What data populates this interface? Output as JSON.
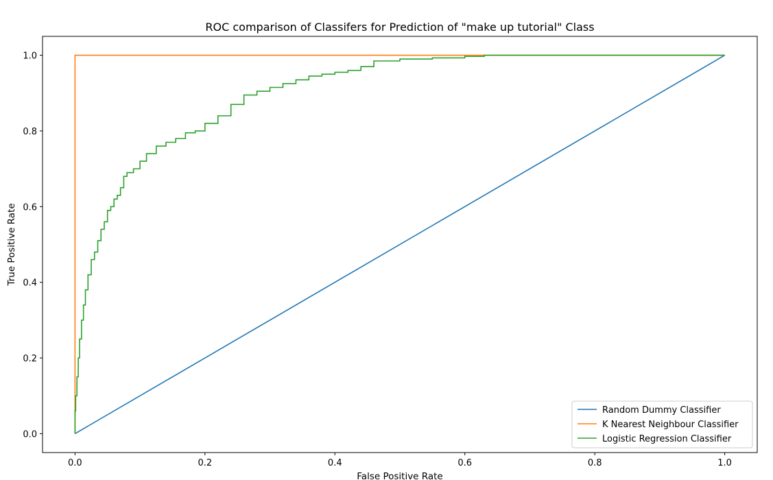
{
  "chart_data": {
    "type": "line",
    "title": "ROC comparison of Classifers for Prediction of \"make up tutorial\" Class",
    "xlabel": "False Positive Rate",
    "ylabel": "True Positive Rate",
    "xlim": [
      -0.05,
      1.05
    ],
    "ylim": [
      -0.05,
      1.05
    ],
    "xticks": [
      "0.0",
      "0.2",
      "0.4",
      "0.6",
      "0.8",
      "1.0"
    ],
    "yticks": [
      "0.0",
      "0.2",
      "0.4",
      "0.6",
      "0.8",
      "1.0"
    ],
    "grid": false,
    "legend_position": "lower-right",
    "series": [
      {
        "name": "Random Dummy Classifier",
        "color": "#1f77b4",
        "x": [
          0.0,
          1.0
        ],
        "y": [
          0.0,
          1.0
        ]
      },
      {
        "name": "K Nearest Neighbour Classifier",
        "color": "#ff7f0e",
        "x": [
          0.0,
          0.0,
          0.63,
          1.0
        ],
        "y": [
          0.0,
          1.0,
          1.0,
          1.0
        ]
      },
      {
        "name": "Logistic Regression Classifier",
        "color": "#2ca02c",
        "x": [
          0.0,
          0.001,
          0.003,
          0.005,
          0.007,
          0.01,
          0.013,
          0.016,
          0.02,
          0.025,
          0.03,
          0.035,
          0.04,
          0.045,
          0.05,
          0.055,
          0.06,
          0.065,
          0.07,
          0.075,
          0.08,
          0.09,
          0.1,
          0.11,
          0.125,
          0.14,
          0.155,
          0.17,
          0.185,
          0.2,
          0.22,
          0.24,
          0.26,
          0.28,
          0.3,
          0.32,
          0.34,
          0.36,
          0.38,
          0.4,
          0.42,
          0.44,
          0.46,
          0.5,
          0.55,
          0.6,
          0.63,
          0.7,
          0.8,
          0.9,
          1.0
        ],
        "y": [
          0.0,
          0.06,
          0.1,
          0.15,
          0.2,
          0.25,
          0.3,
          0.34,
          0.38,
          0.42,
          0.46,
          0.48,
          0.51,
          0.54,
          0.56,
          0.59,
          0.6,
          0.62,
          0.63,
          0.65,
          0.68,
          0.69,
          0.7,
          0.72,
          0.74,
          0.76,
          0.77,
          0.78,
          0.795,
          0.8,
          0.82,
          0.84,
          0.87,
          0.895,
          0.905,
          0.915,
          0.925,
          0.935,
          0.945,
          0.95,
          0.955,
          0.96,
          0.97,
          0.985,
          0.99,
          0.993,
          0.997,
          1.0,
          1.0,
          1.0,
          1.0
        ]
      }
    ]
  }
}
